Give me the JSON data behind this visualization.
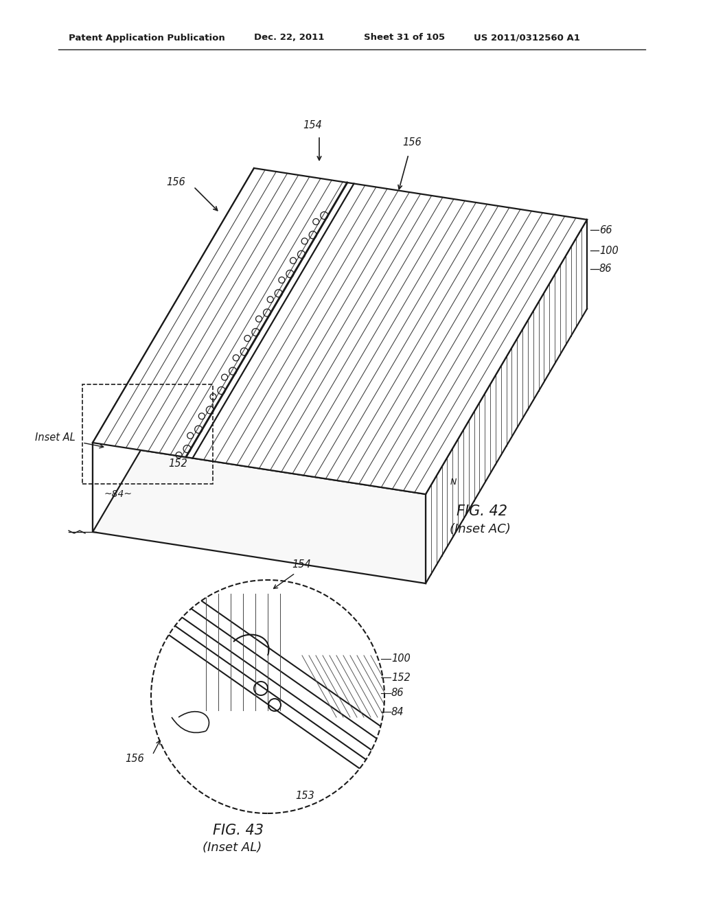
{
  "header_text": "Patent Application Publication",
  "header_date": "Dec. 22, 2011",
  "header_sheet": "Sheet 31 of 105",
  "header_patent": "US 2011/0312560 A1",
  "fig42_title": "FIG. 42",
  "fig42_subtitle": "(Inset AC)",
  "fig43_title": "FIG. 43",
  "fig43_subtitle": "(Inset AL)",
  "background_color": "#ffffff",
  "line_color": "#1a1a1a"
}
